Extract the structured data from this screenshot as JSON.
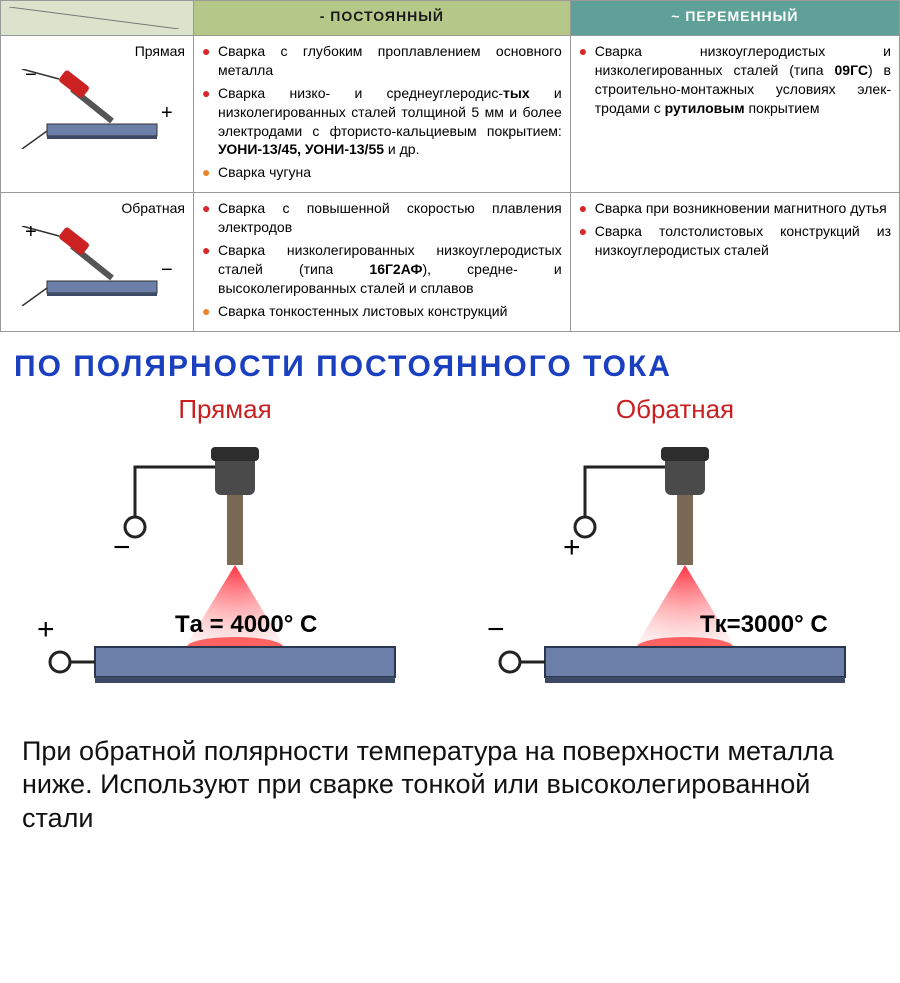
{
  "table": {
    "header_dc": "- ПОСТОЯННЫЙ",
    "header_ac": "~ ПЕРЕМЕННЫЙ",
    "row1_label": "Прямая",
    "row2_label": "Обратная",
    "cell_r1c1": [
      {
        "cls": "b-red",
        "text": "Сварка с глубоким проплавлением основного металла"
      },
      {
        "cls": "b-red",
        "text": "Сварка низко- и среднеуглеродис-<b>тых</b> и низколегированных сталей толщиной 5 мм и более электро­дами с фтористо-кальциевым пок­рытием: <b>УОНИ-13/45, УОНИ-13/55</b> и др."
      },
      {
        "cls": "b-orange",
        "text": "Сварка чугуна"
      }
    ],
    "cell_r1c2": [
      {
        "cls": "b-red",
        "text": "Сварка низкоуглеродистых и низколегированных сталей (типа <b>09ГС</b>) в строитель­но-монтажных условиях элек­тродами с <b>рутиловым</b> пок­рытием"
      }
    ],
    "cell_r2c1": [
      {
        "cls": "b-red",
        "text": "Сварка с повышенной скоростью плавления электродов"
      },
      {
        "cls": "b-red",
        "text": "Сварка низколегированных низко­углеродистых сталей (типа <b>16Г2АФ</b>), средне- и высоколегированных ста­лей и сплавов"
      },
      {
        "cls": "b-orange",
        "text": "Сварка тонкостенных листовых конструкций"
      }
    ],
    "cell_r2c2": [
      {
        "cls": "b-red",
        "text": "Сварка при возникновении магнитного дутья"
      },
      {
        "cls": "b-red",
        "text": "Сварка толстолистовых конструкций из низкоуг­леродистых сталей"
      }
    ]
  },
  "section_title": "ПО ПОЛЯРНОСТИ ПОСТОЯННОГО ТОКА",
  "polarity": {
    "left": {
      "label": "Прямая",
      "temp_label": "Tа = 4000° С",
      "top_sign": "−",
      "bottom_sign": "+"
    },
    "right": {
      "label": "Обратная",
      "temp_label": "Tк=3000° С",
      "top_sign": "+",
      "bottom_sign": "−"
    }
  },
  "bottom_caption": "При обратной полярности температура на поверхности металла ниже. Используют при сварке тонкой или высоколегированной стали",
  "diagrams": {
    "electrode_red": "#c22",
    "plate_blue": "#6b7fa8",
    "plate_shadow": "#3d4a66"
  }
}
